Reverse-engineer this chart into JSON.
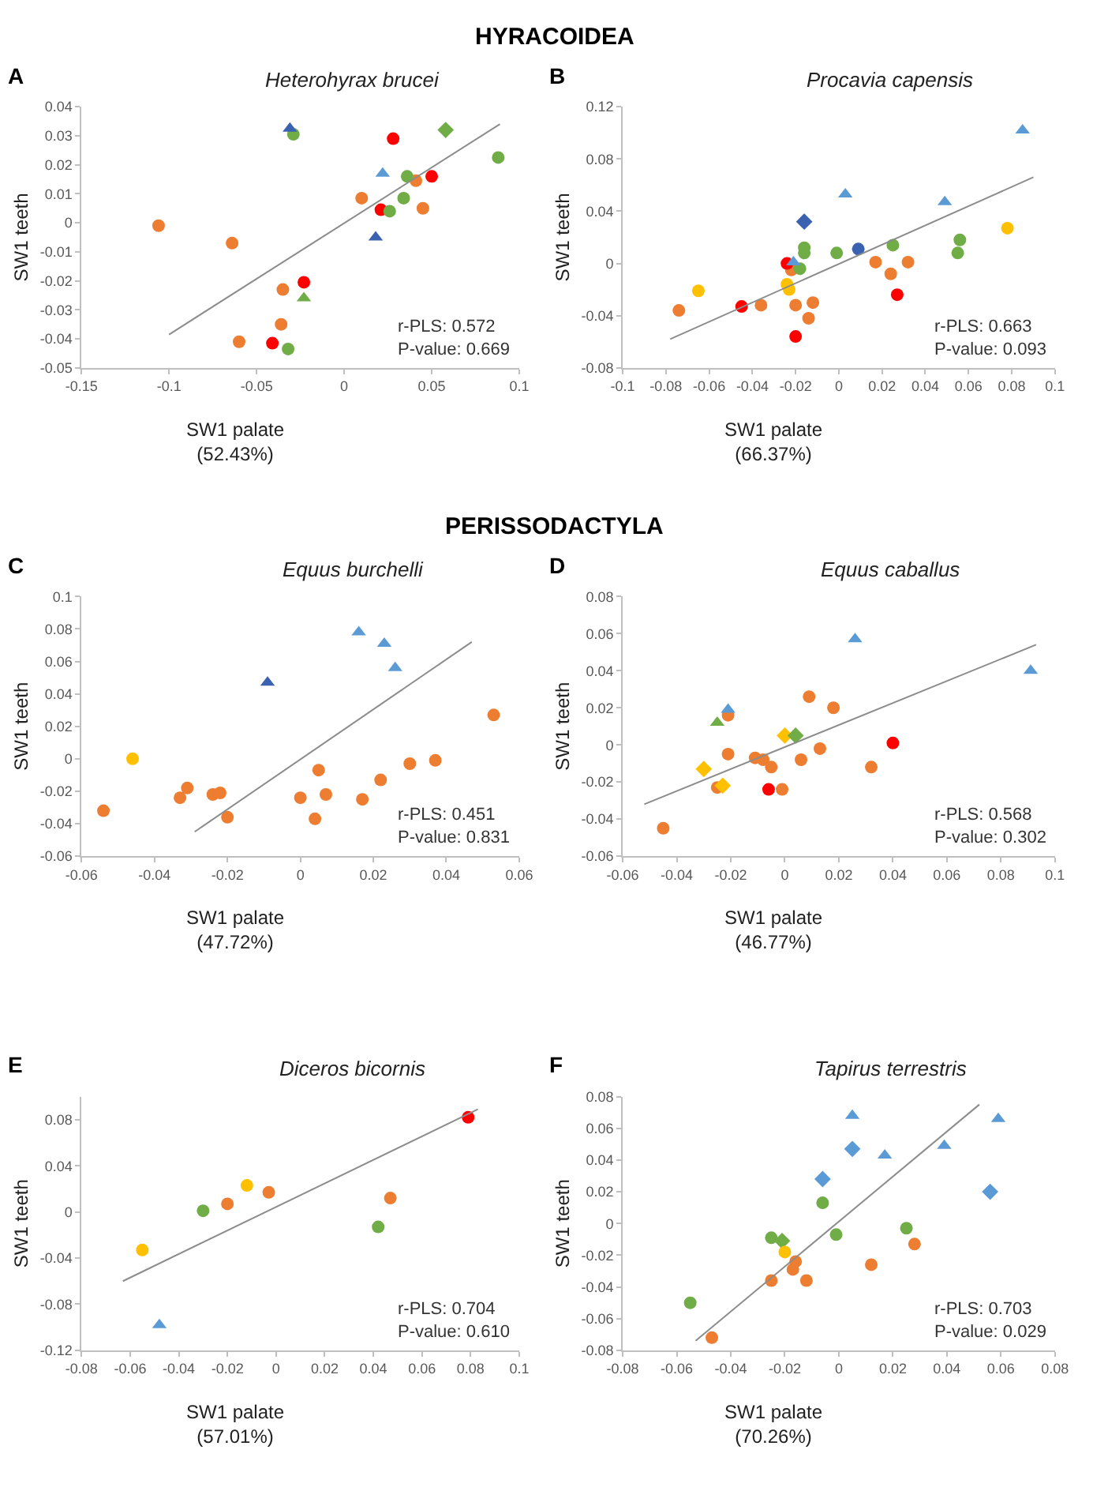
{
  "chart_data": [
    {
      "type": "scatter",
      "title": "Heterohyrax brucei",
      "xlabel": "SW1 palate\n(52.43%)",
      "ylabel": "SW1 teeth",
      "annotations": [
        "A",
        "r-PLS: 0.572\nP-value: 0.669",
        "HYRACOIDEA"
      ],
      "xlim": [
        -0.15,
        0.1
      ],
      "xticks": [
        -0.15,
        -0.1,
        -0.05,
        0,
        0.05,
        0.1
      ],
      "ylim": [
        -0.05,
        0.04
      ],
      "yticks": [
        -0.05,
        -0.04,
        -0.03,
        -0.02,
        -0.01,
        0,
        0.01,
        0.02,
        0.03,
        0.04
      ],
      "series": [
        {
          "color": "#ed7d31",
          "marker": "circle",
          "x": [
            -0.106,
            -0.064,
            -0.035,
            -0.036,
            -0.06,
            0.01,
            0.041,
            0.045
          ],
          "values": [
            -0.001,
            -0.007,
            -0.023,
            -0.035,
            -0.041,
            0.0085,
            0.0145,
            0.005
          ]
        },
        {
          "color": "#ff0000",
          "marker": "circle",
          "x": [
            0.028,
            0.05,
            0.021,
            -0.023,
            -0.041
          ],
          "values": [
            0.029,
            0.016,
            0.0045,
            -0.0205,
            -0.0415
          ]
        },
        {
          "color": "#70ad47",
          "marker": "circle",
          "x": [
            -0.029,
            0.088,
            0.036,
            0.034,
            0.026,
            -0.032
          ],
          "values": [
            0.0305,
            0.0225,
            0.016,
            0.0085,
            0.004,
            -0.0435
          ]
        },
        {
          "color": "#70ad47",
          "marker": "diamond",
          "x": [
            0.058
          ],
          "values": [
            0.032
          ]
        },
        {
          "color": "#70ad47",
          "marker": "triangle",
          "x": [
            -0.023
          ],
          "values": [
            -0.026
          ]
        },
        {
          "color": "#3a62b0",
          "marker": "triangle",
          "x": [
            -0.031,
            0.018
          ],
          "values": [
            0.0325,
            -0.005
          ]
        },
        {
          "color": "#5b9bd5",
          "marker": "triangle",
          "x": [
            0.022
          ],
          "values": [
            0.017
          ]
        },
        {
          "type": "line",
          "color": "#8c8c8c",
          "marker": "none",
          "x": [
            -0.1,
            0.089
          ],
          "values": [
            -0.0385,
            0.034
          ]
        }
      ]
    },
    {
      "type": "scatter",
      "title": "Procavia capensis",
      "xlabel": "SW1 palate\n(66.37%)",
      "ylabel": "SW1 teeth",
      "annotations": [
        "B",
        "r-PLS: 0.663\nP-value: 0.093"
      ],
      "xlim": [
        -0.1,
        0.1
      ],
      "xticks": [
        -0.1,
        -0.08,
        -0.06,
        -0.04,
        -0.02,
        0,
        0.02,
        0.04,
        0.06,
        0.08,
        0.1
      ],
      "ylim": [
        -0.08,
        0.12
      ],
      "yticks": [
        -0.08,
        -0.04,
        0,
        0.04,
        0.08,
        0.12
      ],
      "series": [
        {
          "color": "#ed7d31",
          "marker": "circle",
          "x": [
            -0.074,
            -0.036,
            -0.02,
            -0.014,
            -0.012,
            -0.022,
            0.017,
            0.032,
            0.024
          ],
          "values": [
            -0.036,
            -0.032,
            -0.032,
            -0.042,
            -0.03,
            -0.005,
            0.001,
            0.001,
            -0.008
          ]
        },
        {
          "color": "#ff0000",
          "marker": "circle",
          "x": [
            -0.024,
            -0.045,
            -0.02,
            0.027
          ],
          "values": [
            0,
            -0.033,
            -0.056,
            -0.024
          ]
        },
        {
          "color": "#ffc000",
          "marker": "circle",
          "x": [
            -0.065,
            -0.024,
            -0.023,
            0.078
          ],
          "values": [
            -0.021,
            -0.016,
            -0.02,
            0.027
          ]
        },
        {
          "color": "#70ad47",
          "marker": "circle",
          "x": [
            -0.016,
            -0.016,
            -0.018,
            -0.001,
            0.025,
            0.056,
            0.055
          ],
          "values": [
            0.012,
            0.008,
            -0.004,
            0.008,
            0.014,
            0.018,
            0.008
          ]
        },
        {
          "color": "#3a62b0",
          "marker": "circle",
          "x": [
            0.009
          ],
          "values": [
            0.011
          ]
        },
        {
          "color": "#3a62b0",
          "marker": "diamond",
          "x": [
            -0.016
          ],
          "values": [
            0.032
          ]
        },
        {
          "color": "#5b9bd5",
          "marker": "triangle",
          "x": [
            0.003,
            0.049,
            0.085,
            -0.021
          ],
          "values": [
            0.053,
            0.047,
            0.102,
            0.001
          ]
        },
        {
          "type": "line",
          "color": "#8c8c8c",
          "marker": "none",
          "x": [
            -0.078,
            0.09
          ],
          "values": [
            -0.058,
            0.066
          ]
        }
      ]
    },
    {
      "type": "scatter",
      "title": "Equus burchelli",
      "xlabel": "SW1 palate\n(47.72%)",
      "ylabel": "SW1 teeth",
      "annotations": [
        "C",
        "r-PLS: 0.451\nP-value: 0.831",
        "PERISSODACTYLA"
      ],
      "xlim": [
        -0.06,
        0.06
      ],
      "xticks": [
        -0.06,
        -0.04,
        -0.02,
        0,
        0.02,
        0.04,
        0.06
      ],
      "ylim": [
        -0.06,
        0.1
      ],
      "yticks": [
        -0.06,
        -0.04,
        -0.02,
        0,
        0.02,
        0.04,
        0.06,
        0.08,
        0.1
      ],
      "series": [
        {
          "color": "#ed7d31",
          "marker": "circle",
          "x": [
            -0.054,
            -0.033,
            -0.031,
            -0.024,
            -0.022,
            -0.02,
            0,
            0.004,
            0.005,
            0.007,
            0.017,
            0.022,
            0.03,
            0.037,
            0.053
          ],
          "values": [
            -0.032,
            -0.024,
            -0.018,
            -0.022,
            -0.021,
            -0.036,
            -0.024,
            -0.037,
            -0.007,
            -0.022,
            -0.025,
            -0.013,
            -0.003,
            -0.001,
            0.027
          ]
        },
        {
          "color": "#ffc000",
          "marker": "circle",
          "x": [
            -0.046
          ],
          "values": [
            0
          ]
        },
        {
          "color": "#3a62b0",
          "marker": "triangle",
          "x": [
            -0.009
          ],
          "values": [
            0.047
          ]
        },
        {
          "color": "#5b9bd5",
          "marker": "triangle",
          "x": [
            0.016,
            0.023,
            0.026
          ],
          "values": [
            0.078,
            0.071,
            0.056
          ]
        },
        {
          "type": "line",
          "color": "#8c8c8c",
          "marker": "none",
          "x": [
            -0.029,
            0.047
          ],
          "values": [
            -0.045,
            0.072
          ]
        }
      ]
    },
    {
      "type": "scatter",
      "title": "Equus caballus",
      "xlabel": "SW1 palate\n(46.77%)",
      "ylabel": "SW1 teeth",
      "annotations": [
        "D",
        "r-PLS: 0.568\nP-value: 0.302"
      ],
      "xlim": [
        -0.06,
        0.1
      ],
      "xticks": [
        -0.06,
        -0.04,
        -0.02,
        0,
        0.02,
        0.04,
        0.06,
        0.08,
        0.1
      ],
      "ylim": [
        -0.06,
        0.08
      ],
      "yticks": [
        -0.06,
        -0.04,
        -0.02,
        0,
        0.02,
        0.04,
        0.06,
        0.08
      ],
      "series": [
        {
          "color": "#ed7d31",
          "marker": "circle",
          "x": [
            -0.045,
            -0.025,
            -0.021,
            -0.021,
            -0.011,
            -0.008,
            -0.005,
            -0.001,
            0.006,
            0.009,
            0.013,
            0.018,
            0.032
          ],
          "values": [
            -0.045,
            -0.023,
            0.016,
            -0.005,
            -0.007,
            -0.008,
            -0.012,
            -0.024,
            -0.008,
            0.026,
            -0.002,
            0.02,
            -0.012
          ]
        },
        {
          "color": "#ff0000",
          "marker": "circle",
          "x": [
            -0.006,
            0.04
          ],
          "values": [
            -0.024,
            0.001
          ]
        },
        {
          "color": "#ffc000",
          "marker": "diamond",
          "x": [
            -0.03,
            -0.023,
            0
          ],
          "values": [
            -0.013,
            -0.022,
            0.005
          ]
        },
        {
          "color": "#70ad47",
          "marker": "diamond",
          "x": [
            0.004
          ],
          "values": [
            0.005
          ]
        },
        {
          "color": "#70ad47",
          "marker": "triangle",
          "x": [
            -0.025
          ],
          "values": [
            0.012
          ]
        },
        {
          "color": "#5b9bd5",
          "marker": "triangle",
          "x": [
            -0.021,
            0.026,
            0.091
          ],
          "values": [
            0.019,
            0.057,
            0.04
          ]
        },
        {
          "type": "line",
          "color": "#8c8c8c",
          "marker": "none",
          "x": [
            -0.052,
            0.093
          ],
          "values": [
            -0.032,
            0.054
          ]
        }
      ]
    },
    {
      "type": "scatter",
      "title": "Diceros bicornis",
      "xlabel": "SW1 palate\n(57.01%)",
      "ylabel": "SW1 teeth",
      "annotations": [
        "E",
        "r-PLS: 0.704\nP-value: 0.610"
      ],
      "xlim": [
        -0.08,
        0.1
      ],
      "xticks": [
        -0.08,
        -0.06,
        -0.04,
        -0.02,
        0,
        0.02,
        0.04,
        0.06,
        0.08,
        0.1
      ],
      "ylim": [
        -0.12,
        0.1
      ],
      "yticks": [
        -0.12,
        -0.08,
        -0.04,
        0,
        0.04,
        0.08
      ],
      "series": [
        {
          "color": "#ff0000",
          "marker": "circle",
          "x": [
            0.079
          ],
          "values": [
            0.082
          ]
        },
        {
          "color": "#ed7d31",
          "marker": "circle",
          "x": [
            -0.02,
            -0.003,
            0.047
          ],
          "values": [
            0.007,
            0.017,
            0.012
          ]
        },
        {
          "color": "#ffc000",
          "marker": "circle",
          "x": [
            -0.055,
            -0.012
          ],
          "values": [
            -0.033,
            0.023
          ]
        },
        {
          "color": "#70ad47",
          "marker": "circle",
          "x": [
            -0.03,
            0.042
          ],
          "values": [
            0.001,
            -0.013
          ]
        },
        {
          "color": "#5b9bd5",
          "marker": "triangle",
          "x": [
            -0.048
          ],
          "values": [
            -0.098
          ]
        },
        {
          "type": "line",
          "color": "#8c8c8c",
          "marker": "none",
          "x": [
            -0.063,
            0.083
          ],
          "values": [
            -0.06,
            0.089
          ]
        }
      ]
    },
    {
      "type": "scatter",
      "title": "Tapirus terrestris",
      "xlabel": "SW1 palate\n(70.26%)",
      "ylabel": "SW1 teeth",
      "annotations": [
        "F",
        "r-PLS: 0.703\nP-value: 0.029"
      ],
      "xlim": [
        -0.08,
        0.08
      ],
      "xticks": [
        -0.08,
        -0.06,
        -0.04,
        -0.02,
        0,
        0.02,
        0.04,
        0.06,
        0.08
      ],
      "ylim": [
        -0.08,
        0.08
      ],
      "yticks": [
        -0.08,
        -0.06,
        -0.04,
        -0.02,
        0,
        0.02,
        0.04,
        0.06,
        0.08
      ],
      "series": [
        {
          "color": "#5b9bd5",
          "marker": "triangle",
          "x": [
            0.005,
            0.017,
            0.039,
            0.059
          ],
          "values": [
            0.068,
            0.043,
            0.049,
            0.066
          ]
        },
        {
          "color": "#5b9bd5",
          "marker": "diamond",
          "x": [
            0.005,
            -0.006,
            0.056
          ],
          "values": [
            0.047,
            0.028,
            0.02
          ]
        },
        {
          "color": "#70ad47",
          "marker": "circle",
          "x": [
            -0.055,
            -0.025,
            -0.006,
            -0.001,
            0.025
          ],
          "values": [
            -0.05,
            -0.009,
            0.013,
            -0.007,
            -0.003
          ]
        },
        {
          "color": "#70ad47",
          "marker": "diamond",
          "x": [
            -0.021
          ],
          "values": [
            -0.011
          ]
        },
        {
          "color": "#ffc000",
          "marker": "circle",
          "x": [
            -0.02
          ],
          "values": [
            -0.018
          ]
        },
        {
          "color": "#ed7d31",
          "marker": "circle",
          "x": [
            -0.047,
            -0.025,
            -0.017,
            -0.016,
            -0.012,
            0.012,
            0.028
          ],
          "values": [
            -0.072,
            -0.036,
            -0.029,
            -0.024,
            -0.036,
            -0.026,
            -0.013
          ]
        },
        {
          "type": "line",
          "color": "#8c8c8c",
          "marker": "none",
          "x": [
            -0.053,
            0.052
          ],
          "values": [
            -0.074,
            0.075
          ]
        }
      ]
    }
  ]
}
